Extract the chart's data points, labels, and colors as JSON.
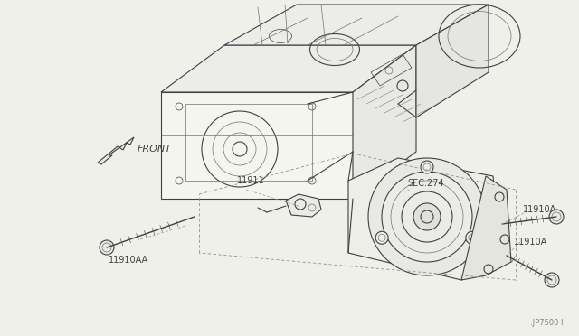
{
  "bg_color": "#f0f0eb",
  "line_color": "#404040",
  "line_color_light": "#707070",
  "line_color_dashed": "#909090",
  "labels": {
    "front": "FRONT",
    "sec274": "SEC.274",
    "11911": "11911",
    "11910AA": "11910AA",
    "11910A_1": "11910A",
    "11910A_2": "11910A",
    "jp7500": ".JP7500 I"
  },
  "font_size_label": 7,
  "font_size_small": 6,
  "figsize": [
    6.4,
    3.72
  ],
  "dpi": 100,
  "xlim": [
    0,
    640
  ],
  "ylim": [
    0,
    372
  ]
}
